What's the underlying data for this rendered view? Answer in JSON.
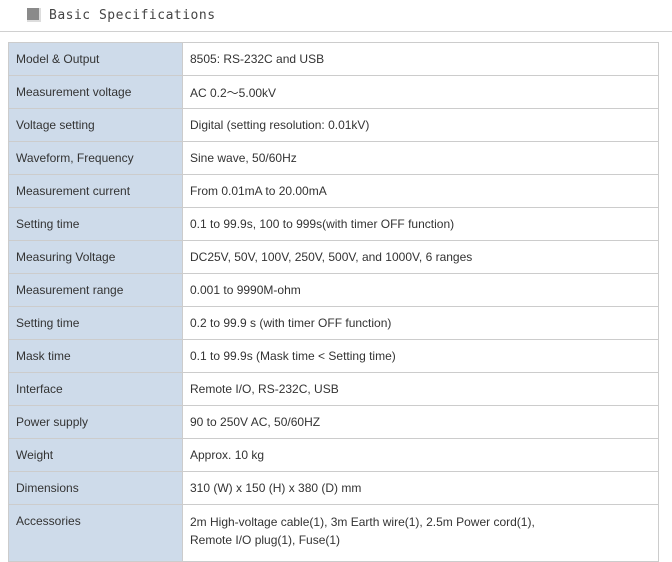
{
  "section": {
    "title": "Basic Specifications",
    "icon": "square-bullet-icon"
  },
  "specs": [
    {
      "label": "Model & Output",
      "value": "8505: RS-232C and USB"
    },
    {
      "label": "Measurement voltage",
      "value": "AC 0.2～5.00kV"
    },
    {
      "label": "Voltage setting",
      "value": "Digital (setting resolution: 0.01kV)"
    },
    {
      "label": "Waveform, Frequency",
      "value": "Sine wave, 50/60Hz"
    },
    {
      "label": "Measurement current",
      "value": "From 0.01mA to 20.00mA"
    },
    {
      "label": "Setting time",
      "value": "0.1 to 99.9s, 100 to 999s(with timer OFF function)"
    },
    {
      "label": "Measuring Voltage",
      "value": "DC25V, 50V, 100V, 250V, 500V, and 1000V, 6 ranges"
    },
    {
      "label": "Measurement range",
      "value": "0.001 to 9990M-ohm"
    },
    {
      "label": "Setting time",
      "value": "0.2 to 99.9 s (with timer OFF function)"
    },
    {
      "label": "Mask time",
      "value": "0.1 to 99.9s (Mask time < Setting time)"
    },
    {
      "label": "Interface",
      "value": "Remote I/O, RS-232C, USB"
    },
    {
      "label": "Power supply",
      "value": "90 to 250V AC, 50/60HZ"
    },
    {
      "label": "Weight",
      "value": "Approx. 10 kg"
    },
    {
      "label": "Dimensions",
      "value": "310 (W) x 150 (H) x 380 (D) mm"
    },
    {
      "label": "Accessories",
      "value": "2m High-voltage cable(1), 3m Earth wire(1), 2.5m Power cord(1),",
      "value2": "Remote I/O plug(1), Fuse(1)"
    }
  ]
}
